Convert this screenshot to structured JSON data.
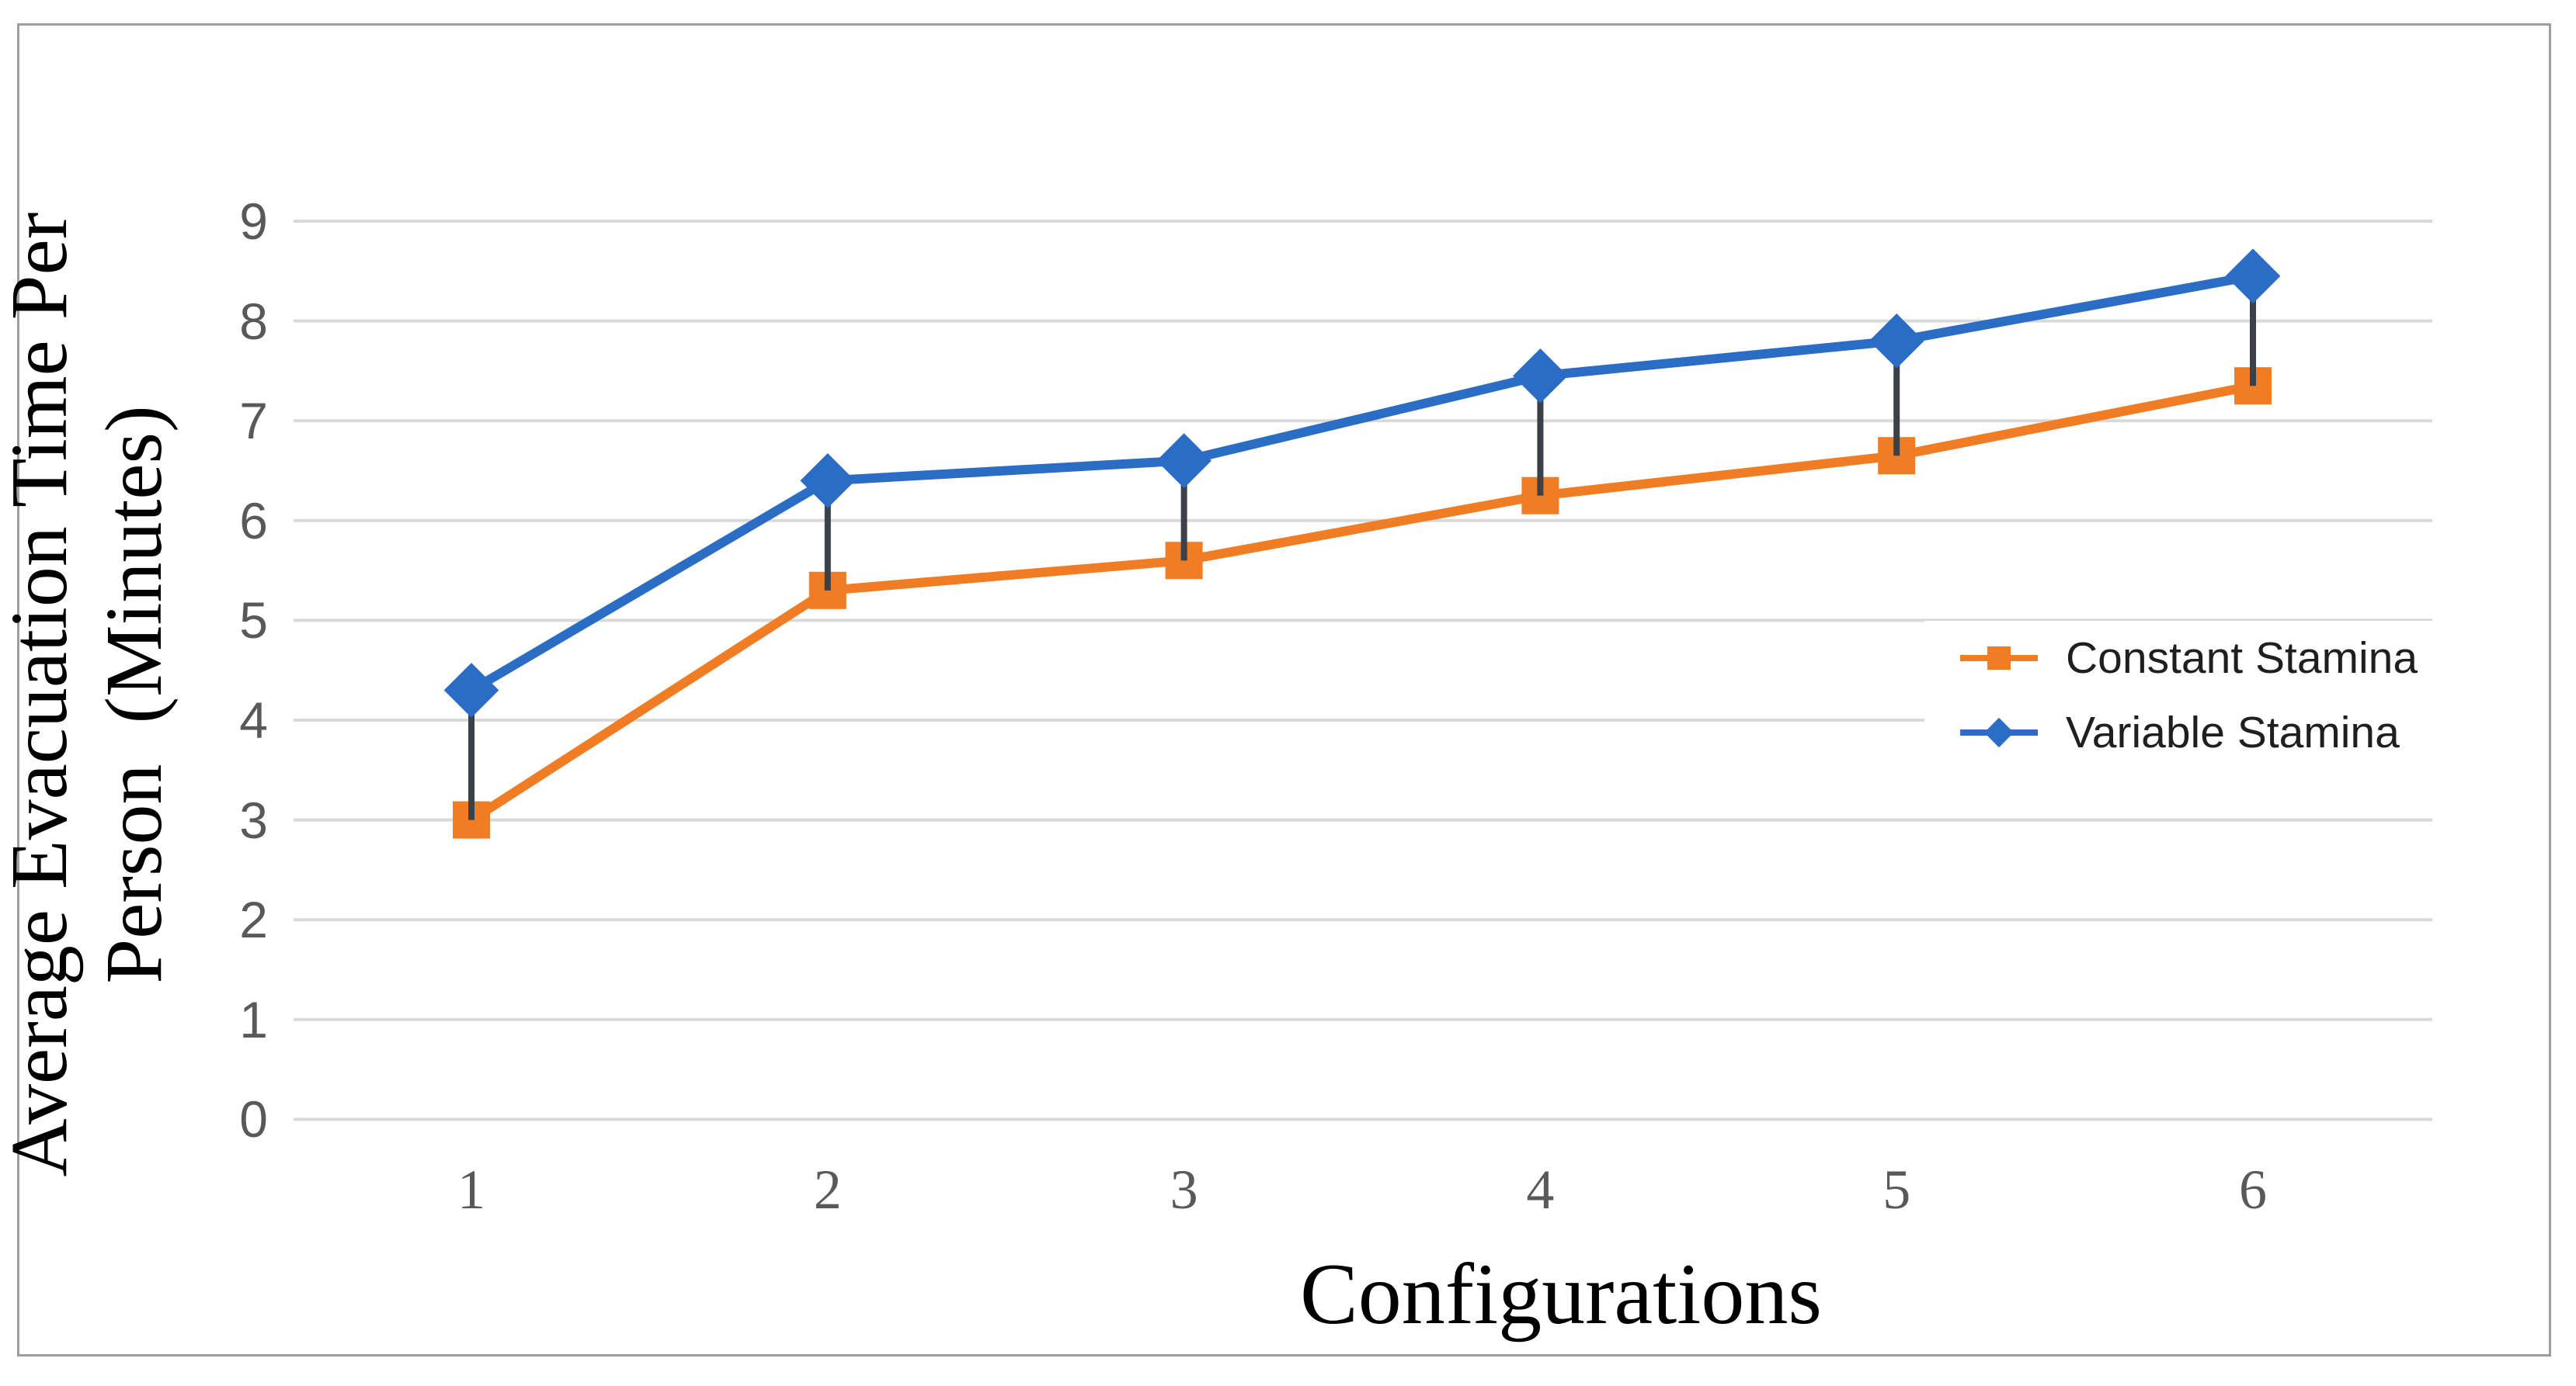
{
  "figure": {
    "background": "#ffffff",
    "border_color": "#9e9e9e"
  },
  "y_axis": {
    "title_lines": [
      "Average Evacuation Time Per",
      "Person  (Minutes)"
    ],
    "ticks": [
      0,
      1,
      2,
      3,
      4,
      5,
      6,
      7,
      8,
      9
    ],
    "range": [
      0,
      9
    ],
    "label_color": "#595959"
  },
  "x_axis": {
    "title": "Configurations",
    "ticks": [
      1,
      2,
      3,
      4,
      5,
      6
    ],
    "label_color": "#595959"
  },
  "legend": {
    "items": [
      {
        "label": "Constant Stamina",
        "color": "#F07C24",
        "marker": "square"
      },
      {
        "label": "Variable Stamina",
        "color": "#2B6CC4",
        "marker": "diamond"
      }
    ]
  },
  "chart_data": {
    "type": "line",
    "title": "",
    "xlabel": "Configurations",
    "ylabel": "Average Evacuation Time Per Person (Minutes)",
    "x": [
      1,
      2,
      3,
      4,
      5,
      6
    ],
    "series": [
      {
        "name": "Constant Stamina",
        "color": "#F07C24",
        "marker": "square",
        "values": [
          3.0,
          5.3,
          5.6,
          6.25,
          6.65,
          7.35
        ]
      },
      {
        "name": "Variable Stamina",
        "color": "#2B6CC4",
        "marker": "diamond",
        "values": [
          4.3,
          6.4,
          6.6,
          7.45,
          7.8,
          8.45
        ]
      }
    ],
    "high_low_lines": true,
    "high_low_color": "#3B4149",
    "gridline_color": "#D9D9D9",
    "ylim": [
      0,
      9
    ],
    "grid": "horizontal",
    "legend_position": "right-middle"
  }
}
